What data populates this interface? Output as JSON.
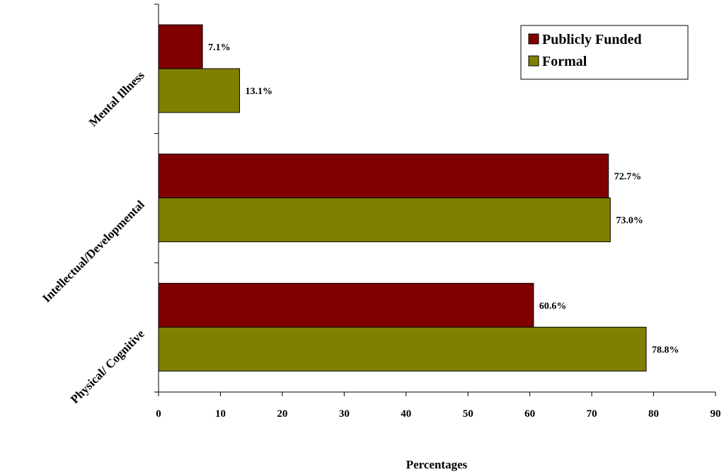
{
  "chart_data": {
    "type": "bar",
    "orientation": "horizontal",
    "categories": [
      "Mental Illness",
      "Intellectual/Developmental",
      "Physical/ Cognitive"
    ],
    "series": [
      {
        "name": "Publicly Funded",
        "color": "#800000",
        "values": [
          7.1,
          72.7,
          60.6
        ],
        "labels": [
          "7.1%",
          "72.7%",
          "60.6%"
        ]
      },
      {
        "name": "Formal",
        "color": "#808000",
        "values": [
          13.1,
          73.0,
          78.8
        ],
        "labels": [
          "13.1%",
          "73.0%",
          "78.8%"
        ]
      }
    ],
    "xlabel": "Percentages",
    "ylabel": "",
    "xlim": [
      0,
      90
    ],
    "xticks": [
      0,
      10,
      20,
      30,
      40,
      50,
      60,
      70,
      80,
      90
    ],
    "xtick_labels": [
      "0",
      "10",
      "20",
      "30",
      "40",
      "50",
      "60",
      "70",
      "80",
      "90"
    ],
    "grid": false,
    "legend_position": "top-right"
  }
}
